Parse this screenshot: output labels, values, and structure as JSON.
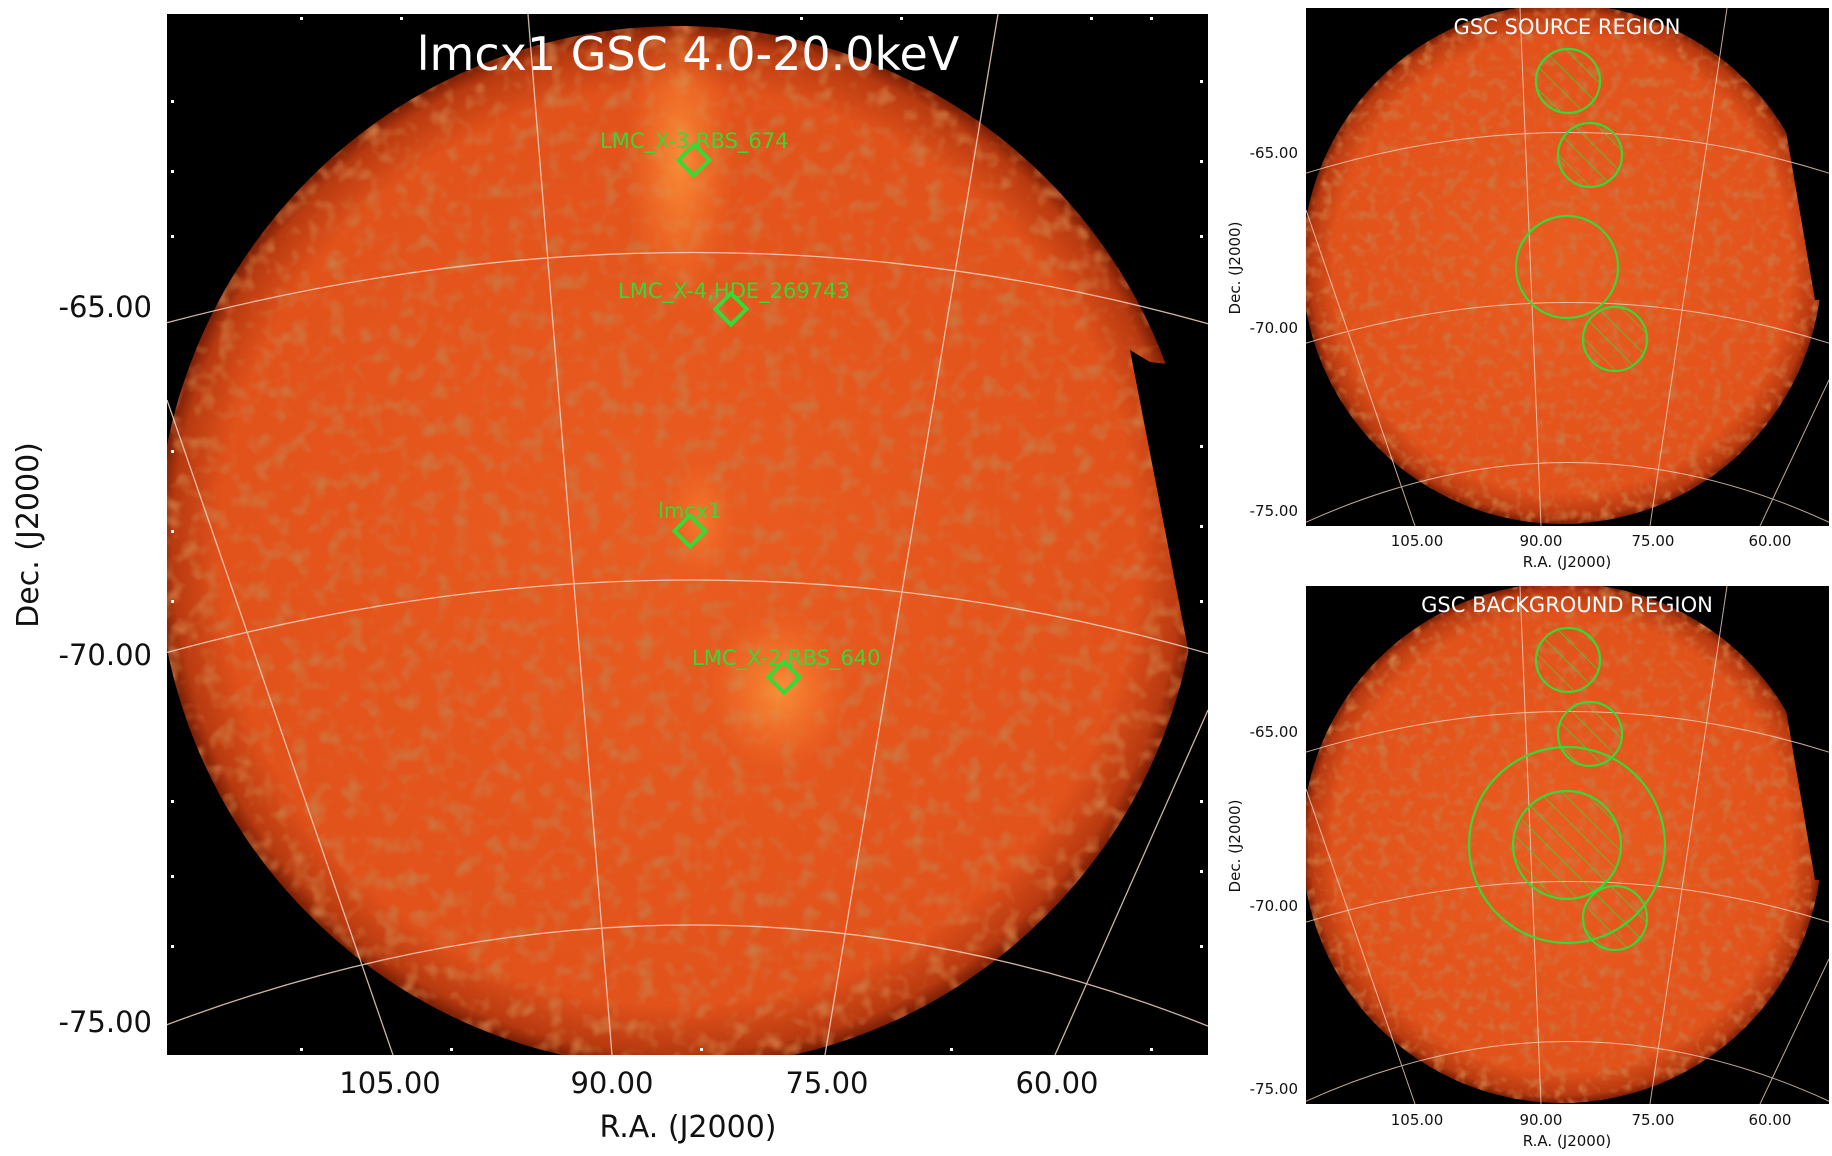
{
  "main_panel": {
    "title": "lmcx1 GSC 4.0-20.0keV",
    "xlabel": "R.A. (J2000)",
    "ylabel": "Dec. (J2000)",
    "x_ticks": [
      "105.00",
      "90.00",
      "75.00",
      "60.00"
    ],
    "y_ticks": [
      "-65.00",
      "-70.00",
      "-75.00"
    ],
    "sources": [
      {
        "name": "LMC_X-3,RBS_674"
      },
      {
        "name": "LMC_X-4,HDE_269743"
      },
      {
        "name": "lmcx1"
      },
      {
        "name": "LMC_X-2,RBS_640"
      }
    ]
  },
  "source_panel": {
    "title": "GSC SOURCE REGION",
    "xlabel": "R.A. (J2000)",
    "ylabel": "Dec. (J2000)",
    "x_ticks": [
      "105.00",
      "90.00",
      "75.00",
      "60.00"
    ],
    "y_ticks": [
      "-65.00",
      "-70.00",
      "-75.00"
    ]
  },
  "background_panel": {
    "title": "GSC BACKGROUND REGION",
    "xlabel": "R.A. (J2000)",
    "ylabel": "Dec. (J2000)",
    "x_ticks": [
      "105.00",
      "90.00",
      "75.00",
      "60.00"
    ],
    "y_ticks": [
      "-65.00",
      "-70.00",
      "-75.00"
    ]
  },
  "colors": {
    "sky": "#e5571d",
    "background": "#000000",
    "grid": "#f2d2c2",
    "region": "#36d936"
  }
}
